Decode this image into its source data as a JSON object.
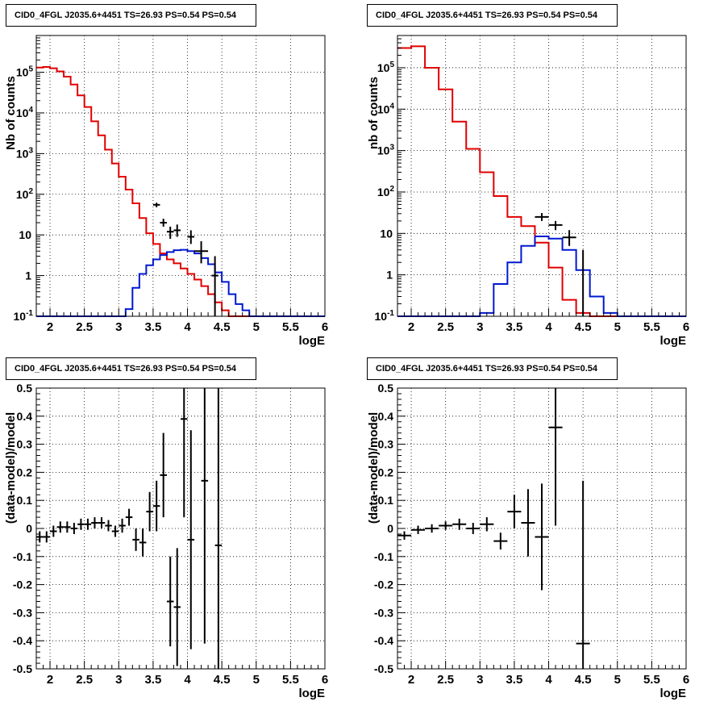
{
  "colors": {
    "data": "#000000",
    "model_total": "#e00000",
    "model_source": "#0018d0",
    "grid": "#000000"
  },
  "chart_data": [
    {
      "type": "line",
      "title": "CID0_4FGL J2035.6+4451 TS=26.93 PS=0.54 PS=0.54",
      "xlabel": "logE",
      "ylabel": "Nb of counts",
      "xlim": [
        1.8,
        6.0
      ],
      "ylim": [
        0.1,
        800000
      ],
      "yscale": "log",
      "grid": true,
      "x_ticks": [
        "2",
        "2.5",
        "3",
        "3.5",
        "4",
        "4.5",
        "5",
        "5.5",
        "6"
      ],
      "y_ticks": [
        "10^-1",
        "1",
        "10",
        "10^2",
        "10^3",
        "10^4",
        "10^5"
      ],
      "bin_edges": [
        1.8,
        1.9,
        2.0,
        2.1,
        2.2,
        2.3,
        2.4,
        2.5,
        2.6,
        2.7,
        2.8,
        2.9,
        3.0,
        3.1,
        3.2,
        3.3,
        3.4,
        3.5,
        3.6,
        3.7,
        3.8,
        3.9,
        4.0,
        4.1,
        4.2,
        4.3,
        4.4,
        4.5,
        4.6,
        4.7,
        4.8,
        4.9,
        5.0,
        5.2,
        5.4,
        5.6,
        5.8,
        6.0
      ],
      "series": [
        {
          "kind": "model_total",
          "values": [
            130000,
            135000,
            125000,
            105000,
            78000,
            50000,
            27000,
            14000,
            6200,
            2800,
            1250,
            570,
            270,
            130,
            60,
            26,
            11,
            6,
            3.5,
            2.5,
            2.0,
            1.5,
            1.1,
            0.8,
            0.55,
            0.35,
            0.22,
            0.14,
            0.1,
            0.1,
            0.1,
            0.1,
            0.1,
            0.1,
            0.1,
            0.1,
            0.1
          ]
        },
        {
          "kind": "model_source",
          "values": [
            0.1,
            0.1,
            0.1,
            0.1,
            0.1,
            0.1,
            0.1,
            0.1,
            0.1,
            0.1,
            0.1,
            0.1,
            0.1,
            0.15,
            0.5,
            1.1,
            1.8,
            2.5,
            3.2,
            3.8,
            4.2,
            4.3,
            4.0,
            3.5,
            2.7,
            1.9,
            1.2,
            0.7,
            0.35,
            0.2,
            0.14,
            0.1,
            0.1,
            0.1,
            0.1,
            0.1,
            0.1
          ]
        }
      ],
      "points": [
        {
          "x": 3.55,
          "y": 55,
          "dx": 0.05,
          "ylo": 48,
          "yhi": 62
        },
        {
          "x": 3.65,
          "y": 20,
          "dx": 0.05,
          "ylo": 16,
          "yhi": 25
        },
        {
          "x": 3.75,
          "y": 12,
          "dx": 0.05,
          "ylo": 8,
          "yhi": 16
        },
        {
          "x": 3.85,
          "y": 13,
          "dx": 0.05,
          "ylo": 9,
          "yhi": 18
        },
        {
          "x": 4.05,
          "y": 9,
          "dx": 0.05,
          "ylo": 6,
          "yhi": 13
        },
        {
          "x": 4.2,
          "y": 4,
          "dx": 0.1,
          "ylo": 2,
          "yhi": 7
        },
        {
          "x": 4.4,
          "y": 1,
          "dx": 0.05,
          "ylo": 0.1,
          "yhi": 3
        }
      ]
    },
    {
      "type": "line",
      "title": "CID0_4FGL J2035.6+4451 TS=26.93 PS=0.54 PS=0.54",
      "xlabel": "logE",
      "ylabel": "nb of counts",
      "xlim": [
        1.8,
        6.0
      ],
      "ylim": [
        0.1,
        600000
      ],
      "yscale": "log",
      "grid": true,
      "x_ticks": [
        "2",
        "2.5",
        "3",
        "3.5",
        "4",
        "4.5",
        "5",
        "5.5",
        "6"
      ],
      "y_ticks": [
        "10^-1",
        "1",
        "10",
        "10^2",
        "10^3",
        "10^4",
        "10^5"
      ],
      "bin_edges": [
        1.8,
        2.0,
        2.2,
        2.4,
        2.6,
        2.8,
        3.0,
        3.2,
        3.4,
        3.6,
        3.8,
        4.0,
        4.2,
        4.4,
        4.6,
        4.8,
        5.0,
        5.2,
        5.4,
        5.6,
        5.8,
        6.0
      ],
      "series": [
        {
          "kind": "model_total",
          "values": [
            300000,
            330000,
            100000,
            30000,
            5000,
            1100,
            300,
            80,
            25,
            15,
            6,
            1.5,
            0.25,
            0.12,
            0.1,
            0.1,
            0.1,
            0.1,
            0.1,
            0.1,
            0.1
          ]
        },
        {
          "kind": "model_source",
          "values": [
            0.1,
            0.1,
            0.1,
            0.1,
            0.1,
            0.1,
            0.12,
            0.6,
            2.0,
            5.0,
            8.5,
            7.5,
            4.0,
            1.3,
            0.3,
            0.12,
            0.1,
            0.1,
            0.1,
            0.1,
            0.1
          ]
        }
      ],
      "points": [
        {
          "x": 3.9,
          "y": 25,
          "dx": 0.1,
          "ylo": 20,
          "yhi": 31
        },
        {
          "x": 4.1,
          "y": 16,
          "dx": 0.1,
          "ylo": 12,
          "yhi": 20
        },
        {
          "x": 4.3,
          "y": 8,
          "dx": 0.1,
          "ylo": 5,
          "yhi": 12
        },
        {
          "x": 4.5,
          "y": 1,
          "dx": 0.0,
          "ylo": 0.1,
          "yhi": 4
        }
      ]
    },
    {
      "type": "scatter",
      "title": "CID0_4FGL J2035.6+4451 TS=26.93 PS=0.54 PS=0.54",
      "xlabel": "logE",
      "ylabel": "(data-model)/model",
      "xlim": [
        1.8,
        6.0
      ],
      "ylim": [
        -0.5,
        0.5
      ],
      "grid": true,
      "x_ticks": [
        "2",
        "2.5",
        "3",
        "3.5",
        "4",
        "4.5",
        "5",
        "5.5",
        "6"
      ],
      "y_ticks": [
        "-0.5",
        "-0.4",
        "-0.3",
        "-0.2",
        "-0.1",
        "0",
        "0.1",
        "0.2",
        "0.3",
        "0.4",
        "0.5"
      ],
      "points": [
        {
          "x": 1.85,
          "y": -0.03,
          "dx": 0.05,
          "err": 0.02
        },
        {
          "x": 1.95,
          "y": -0.03,
          "dx": 0.05,
          "err": 0.02
        },
        {
          "x": 2.05,
          "y": -0.01,
          "dx": 0.05,
          "err": 0.02
        },
        {
          "x": 2.15,
          "y": 0.005,
          "dx": 0.05,
          "err": 0.02
        },
        {
          "x": 2.25,
          "y": 0.005,
          "dx": 0.05,
          "err": 0.02
        },
        {
          "x": 2.35,
          "y": 0.0,
          "dx": 0.05,
          "err": 0.02
        },
        {
          "x": 2.45,
          "y": 0.015,
          "dx": 0.05,
          "err": 0.02
        },
        {
          "x": 2.55,
          "y": 0.015,
          "dx": 0.05,
          "err": 0.02
        },
        {
          "x": 2.65,
          "y": 0.02,
          "dx": 0.05,
          "err": 0.02
        },
        {
          "x": 2.75,
          "y": 0.02,
          "dx": 0.05,
          "err": 0.02
        },
        {
          "x": 2.85,
          "y": 0.01,
          "dx": 0.05,
          "err": 0.02
        },
        {
          "x": 2.95,
          "y": -0.01,
          "dx": 0.05,
          "err": 0.02
        },
        {
          "x": 3.05,
          "y": 0.01,
          "dx": 0.05,
          "err": 0.025
        },
        {
          "x": 3.15,
          "y": 0.04,
          "dx": 0.05,
          "err": 0.03
        },
        {
          "x": 3.25,
          "y": -0.04,
          "dx": 0.05,
          "err": 0.04
        },
        {
          "x": 3.35,
          "y": -0.05,
          "dx": 0.05,
          "err": 0.05
        },
        {
          "x": 3.45,
          "y": 0.06,
          "dx": 0.05,
          "err": 0.07
        },
        {
          "x": 3.55,
          "y": 0.08,
          "dx": 0.05,
          "err": 0.09
        },
        {
          "x": 3.65,
          "y": 0.19,
          "dx": 0.05,
          "err": 0.15
        },
        {
          "x": 3.75,
          "y": -0.26,
          "dx": 0.05,
          "err": 0.16
        },
        {
          "x": 3.85,
          "y": -0.28,
          "dx": 0.05,
          "err": 0.21
        },
        {
          "x": 3.95,
          "y": 0.39,
          "dx": 0.05,
          "err": 0.35
        },
        {
          "x": 4.05,
          "y": -0.04,
          "dx": 0.05,
          "err": 0.39
        },
        {
          "x": 4.25,
          "y": 0.17,
          "dx": 0.05,
          "err": 0.58
        },
        {
          "x": 4.45,
          "y": -0.06,
          "dx": 0.05,
          "err": 0.9
        }
      ]
    },
    {
      "type": "scatter",
      "title": "CID0_4FGL J2035.6+4451 TS=26.93 PS=0.54 PS=0.54",
      "xlabel": "logE",
      "ylabel": "(data-model)/model",
      "xlim": [
        1.8,
        6.0
      ],
      "ylim": [
        -0.5,
        0.5
      ],
      "grid": true,
      "x_ticks": [
        "2",
        "2.5",
        "3",
        "3.5",
        "4",
        "4.5",
        "5",
        "5.5",
        "6"
      ],
      "y_ticks": [
        "-0.5",
        "-0.4",
        "-0.3",
        "-0.2",
        "-0.1",
        "0",
        "0.1",
        "0.2",
        "0.3",
        "0.4",
        "0.5"
      ],
      "points": [
        {
          "x": 1.9,
          "y": -0.025,
          "dx": 0.1,
          "err": 0.015
        },
        {
          "x": 2.1,
          "y": -0.005,
          "dx": 0.1,
          "err": 0.015
        },
        {
          "x": 2.3,
          "y": 0.0,
          "dx": 0.1,
          "err": 0.015
        },
        {
          "x": 2.5,
          "y": 0.01,
          "dx": 0.1,
          "err": 0.015
        },
        {
          "x": 2.7,
          "y": 0.015,
          "dx": 0.1,
          "err": 0.02
        },
        {
          "x": 2.9,
          "y": 0.0,
          "dx": 0.1,
          "err": 0.02
        },
        {
          "x": 3.1,
          "y": 0.015,
          "dx": 0.1,
          "err": 0.025
        },
        {
          "x": 3.3,
          "y": -0.045,
          "dx": 0.1,
          "err": 0.03
        },
        {
          "x": 3.5,
          "y": 0.06,
          "dx": 0.1,
          "err": 0.06
        },
        {
          "x": 3.7,
          "y": 0.02,
          "dx": 0.1,
          "err": 0.12
        },
        {
          "x": 3.9,
          "y": -0.03,
          "dx": 0.1,
          "err": 0.19
        },
        {
          "x": 4.1,
          "y": 0.36,
          "dx": 0.1,
          "err": 0.35
        },
        {
          "x": 4.5,
          "y": -0.41,
          "dx": 0.1,
          "err": 0.58
        }
      ]
    }
  ]
}
